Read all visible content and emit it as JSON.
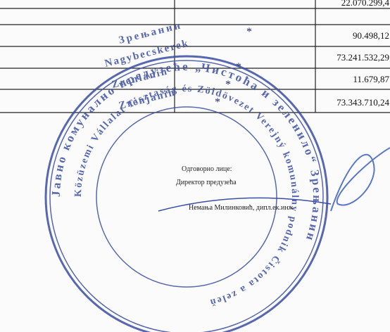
{
  "table": {
    "rows": [
      [
        "22.070.299,4"
      ],
      [
        "90.498,12"
      ],
      [
        "73.241.532,29"
      ],
      [
        "11.679,87"
      ],
      [
        "73.343.710,24"
      ]
    ]
  },
  "signature": {
    "role": "Одговорно лице:",
    "position": "Директор предузећа",
    "name": "Немања Милинковић, дипл.ек.инж"
  },
  "stamp": {
    "city_lines": [
      "Зрењанин",
      "Nagybecskerek",
      "Zrenianin",
      "Zrenjanin"
    ],
    "ring_outer": "Јавно комунално предузеће „Чистоћа и зеленило“ Зрењанин",
    "ring_inner": "Közüzemi Vállalat Tisztaság és Zöldövezet Verejný komunálny podnik Čistota a zeleň"
  }
}
